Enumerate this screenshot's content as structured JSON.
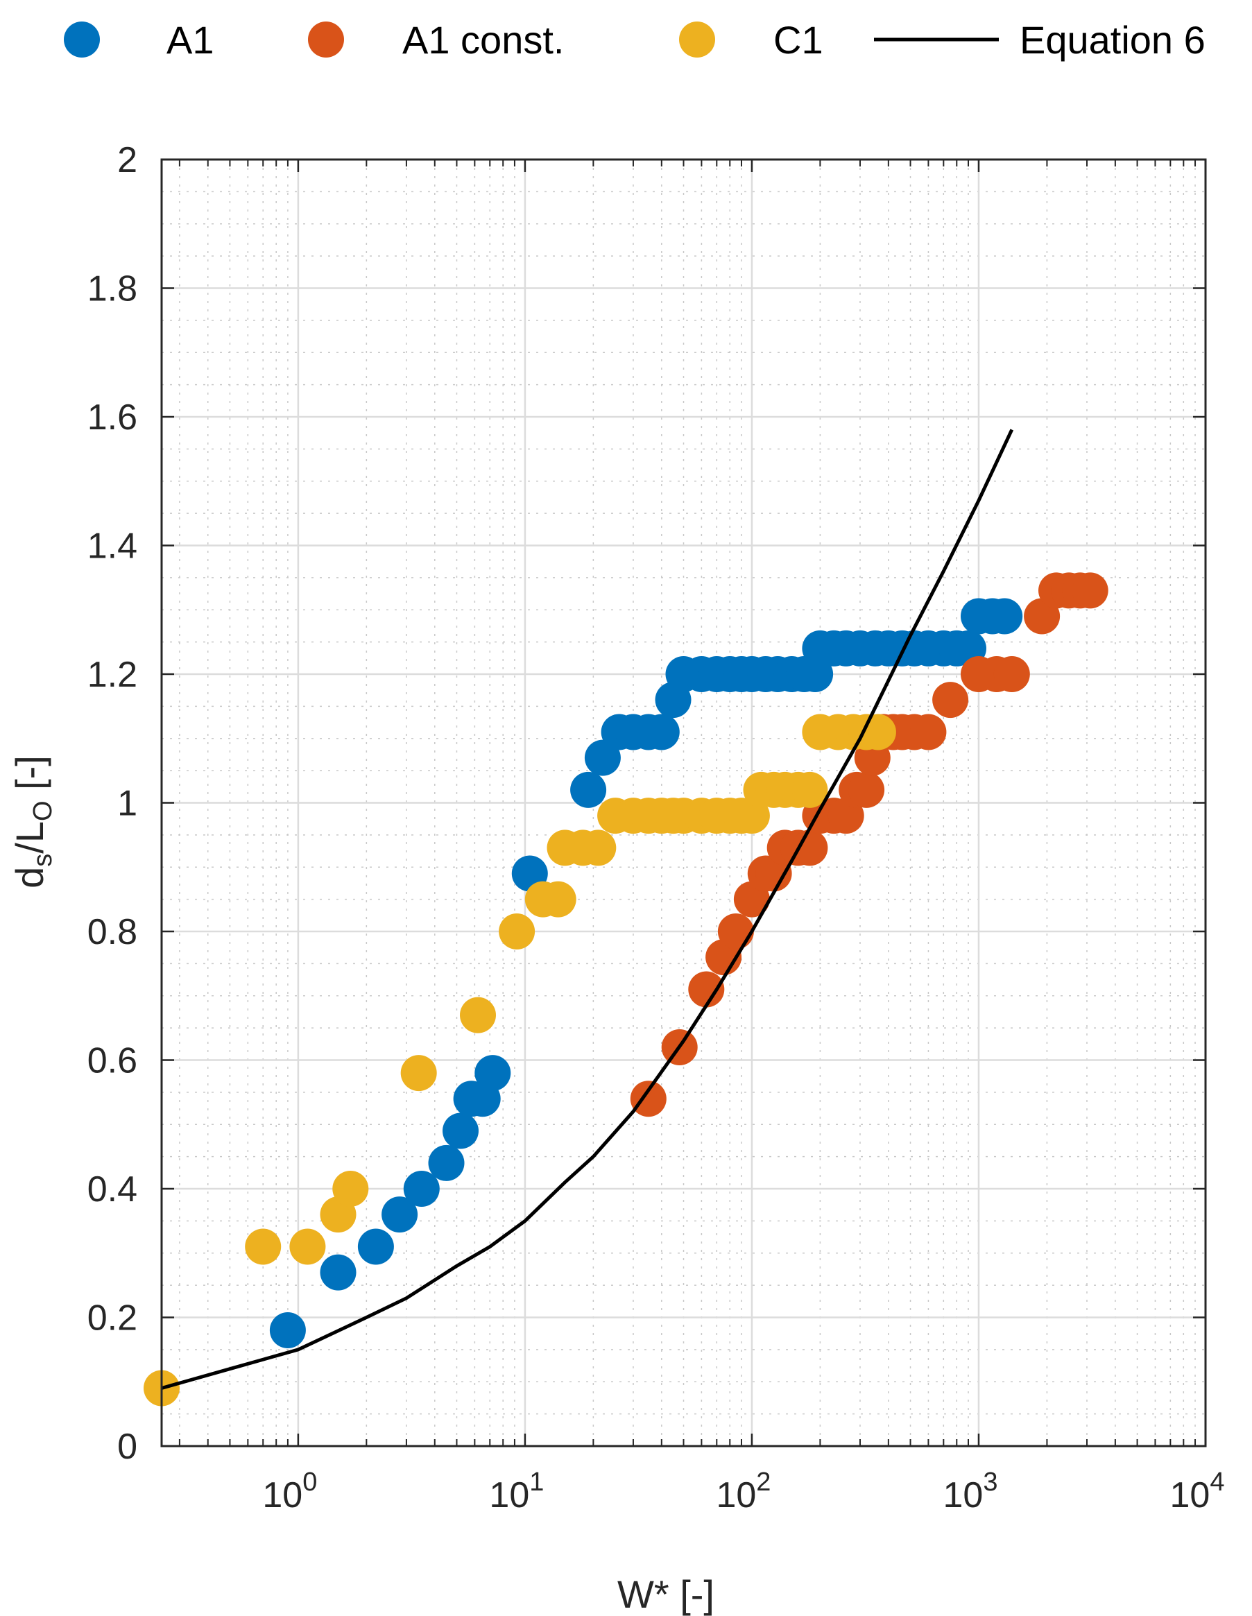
{
  "chart_data": {
    "type": "scatter",
    "xscale": "log",
    "xlim": [
      0.25,
      10000
    ],
    "ylim": [
      0,
      2
    ],
    "xticks": [
      {
        "value": 1,
        "base": "10",
        "exp": "0"
      },
      {
        "value": 10,
        "base": "10",
        "exp": "1"
      },
      {
        "value": 100,
        "base": "10",
        "exp": "2"
      },
      {
        "value": 1000,
        "base": "10",
        "exp": "3"
      },
      {
        "value": 10000,
        "base": "10",
        "exp": "4"
      }
    ],
    "yticks": [
      {
        "value": 0,
        "label": "0"
      },
      {
        "value": 0.2,
        "label": "0.2"
      },
      {
        "value": 0.4,
        "label": "0.4"
      },
      {
        "value": 0.6,
        "label": "0.6"
      },
      {
        "value": 0.8,
        "label": "0.8"
      },
      {
        "value": 1.0,
        "label": "1"
      },
      {
        "value": 1.2,
        "label": "1.2"
      },
      {
        "value": 1.4,
        "label": "1.4"
      },
      {
        "value": 1.6,
        "label": "1.6"
      },
      {
        "value": 1.8,
        "label": "1.8"
      },
      {
        "value": 2.0,
        "label": "2"
      }
    ],
    "xlabel": "W* [-]",
    "ylabel": {
      "main": "d",
      "sub1": "s",
      "mid": "/L",
      "sub2": "O",
      "tail": " [-]"
    },
    "grid": true,
    "legend_position": "top",
    "series": [
      {
        "name": "A1",
        "kind": "scatter",
        "color": "#0072BD",
        "points": [
          [
            0.9,
            0.18
          ],
          [
            1.5,
            0.27
          ],
          [
            2.2,
            0.31
          ],
          [
            2.8,
            0.36
          ],
          [
            3.5,
            0.4
          ],
          [
            4.5,
            0.44
          ],
          [
            5.2,
            0.49
          ],
          [
            5.8,
            0.54
          ],
          [
            6.5,
            0.54
          ],
          [
            7.2,
            0.58
          ],
          [
            10.5,
            0.89
          ],
          [
            19,
            1.02
          ],
          [
            22,
            1.07
          ],
          [
            26,
            1.11
          ],
          [
            30,
            1.11
          ],
          [
            35,
            1.11
          ],
          [
            40,
            1.11
          ],
          [
            45,
            1.16
          ],
          [
            50,
            1.2
          ],
          [
            60,
            1.2
          ],
          [
            70,
            1.2
          ],
          [
            80,
            1.2
          ],
          [
            90,
            1.2
          ],
          [
            100,
            1.2
          ],
          [
            115,
            1.2
          ],
          [
            130,
            1.2
          ],
          [
            150,
            1.2
          ],
          [
            170,
            1.2
          ],
          [
            190,
            1.2
          ],
          [
            200,
            1.24
          ],
          [
            230,
            1.24
          ],
          [
            260,
            1.24
          ],
          [
            300,
            1.24
          ],
          [
            350,
            1.24
          ],
          [
            400,
            1.24
          ],
          [
            460,
            1.24
          ],
          [
            520,
            1.24
          ],
          [
            600,
            1.24
          ],
          [
            700,
            1.24
          ],
          [
            800,
            1.24
          ],
          [
            900,
            1.24
          ],
          [
            1000,
            1.29
          ],
          [
            1150,
            1.29
          ],
          [
            1300,
            1.29
          ]
        ]
      },
      {
        "name": "A1 const.",
        "kind": "scatter",
        "color": "#D95319",
        "points": [
          [
            35,
            0.54
          ],
          [
            48,
            0.62
          ],
          [
            63,
            0.71
          ],
          [
            75,
            0.76
          ],
          [
            85,
            0.8
          ],
          [
            100,
            0.85
          ],
          [
            115,
            0.89
          ],
          [
            125,
            0.89
          ],
          [
            140,
            0.93
          ],
          [
            160,
            0.93
          ],
          [
            180,
            0.93
          ],
          [
            200,
            0.98
          ],
          [
            230,
            0.98
          ],
          [
            260,
            0.98
          ],
          [
            290,
            1.02
          ],
          [
            320,
            1.02
          ],
          [
            340,
            1.07
          ],
          [
            380,
            1.11
          ],
          [
            420,
            1.11
          ],
          [
            460,
            1.11
          ],
          [
            520,
            1.11
          ],
          [
            600,
            1.11
          ],
          [
            750,
            1.16
          ],
          [
            1000,
            1.2
          ],
          [
            1200,
            1.2
          ],
          [
            1400,
            1.2
          ],
          [
            1900,
            1.29
          ],
          [
            2200,
            1.33
          ],
          [
            2500,
            1.33
          ],
          [
            2800,
            1.33
          ],
          [
            3100,
            1.33
          ]
        ]
      },
      {
        "name": "C1",
        "kind": "scatter",
        "color": "#EDB120",
        "points": [
          [
            0.25,
            0.09
          ],
          [
            0.7,
            0.31
          ],
          [
            1.1,
            0.31
          ],
          [
            1.5,
            0.36
          ],
          [
            1.7,
            0.4
          ],
          [
            3.4,
            0.58
          ],
          [
            6.2,
            0.67
          ],
          [
            9.2,
            0.8
          ],
          [
            12,
            0.85
          ],
          [
            14,
            0.85
          ],
          [
            15,
            0.93
          ],
          [
            18,
            0.93
          ],
          [
            21,
            0.93
          ],
          [
            25,
            0.98
          ],
          [
            30,
            0.98
          ],
          [
            35,
            0.98
          ],
          [
            40,
            0.98
          ],
          [
            45,
            0.98
          ],
          [
            50,
            0.98
          ],
          [
            60,
            0.98
          ],
          [
            70,
            0.98
          ],
          [
            80,
            0.98
          ],
          [
            90,
            0.98
          ],
          [
            100,
            0.98
          ],
          [
            110,
            1.02
          ],
          [
            125,
            1.02
          ],
          [
            140,
            1.02
          ],
          [
            160,
            1.02
          ],
          [
            180,
            1.02
          ],
          [
            200,
            1.11
          ],
          [
            240,
            1.11
          ],
          [
            280,
            1.11
          ],
          [
            320,
            1.11
          ],
          [
            360,
            1.11
          ]
        ]
      },
      {
        "name": "Equation 6",
        "kind": "line",
        "color": "#000000",
        "points": [
          [
            0.25,
            0.09
          ],
          [
            0.5,
            0.12
          ],
          [
            1,
            0.15
          ],
          [
            2,
            0.2
          ],
          [
            3,
            0.23
          ],
          [
            5,
            0.28
          ],
          [
            7,
            0.31
          ],
          [
            10,
            0.35
          ],
          [
            15,
            0.41
          ],
          [
            20,
            0.45
          ],
          [
            30,
            0.52
          ],
          [
            50,
            0.63
          ],
          [
            70,
            0.71
          ],
          [
            100,
            0.8
          ],
          [
            150,
            0.91
          ],
          [
            200,
            0.99
          ],
          [
            300,
            1.1
          ],
          [
            400,
            1.19
          ],
          [
            500,
            1.26
          ],
          [
            700,
            1.36
          ],
          [
            1000,
            1.47
          ],
          [
            1400,
            1.58
          ]
        ]
      }
    ]
  }
}
